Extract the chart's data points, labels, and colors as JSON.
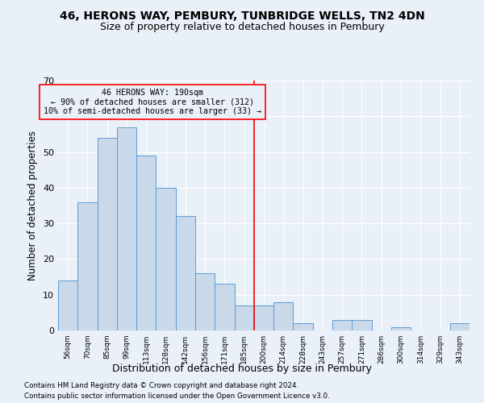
{
  "title1": "46, HERONS WAY, PEMBURY, TUNBRIDGE WELLS, TN2 4DN",
  "title2": "Size of property relative to detached houses in Pembury",
  "xlabel": "Distribution of detached houses by size in Pembury",
  "ylabel": "Number of detached properties",
  "categories": [
    "56sqm",
    "70sqm",
    "85sqm",
    "99sqm",
    "113sqm",
    "128sqm",
    "142sqm",
    "156sqm",
    "171sqm",
    "185sqm",
    "200sqm",
    "214sqm",
    "228sqm",
    "243sqm",
    "257sqm",
    "271sqm",
    "286sqm",
    "300sqm",
    "314sqm",
    "329sqm",
    "343sqm"
  ],
  "values": [
    14,
    36,
    54,
    57,
    49,
    40,
    32,
    16,
    13,
    7,
    7,
    8,
    2,
    0,
    3,
    3,
    0,
    1,
    0,
    0,
    2
  ],
  "bar_color": "#c9d9ea",
  "bar_edge_color": "#5b9bd5",
  "vline_x": 9.5,
  "annotation_line1": "46 HERONS WAY: 190sqm",
  "annotation_line2": "← 90% of detached houses are smaller (312)",
  "annotation_line3": "10% of semi-detached houses are larger (33) →",
  "ylim": [
    0,
    70
  ],
  "background_color": "#eaf0f8",
  "grid_color": "#ffffff",
  "footnote1": "Contains HM Land Registry data © Crown copyright and database right 2024.",
  "footnote2": "Contains public sector information licensed under the Open Government Licence v3.0."
}
